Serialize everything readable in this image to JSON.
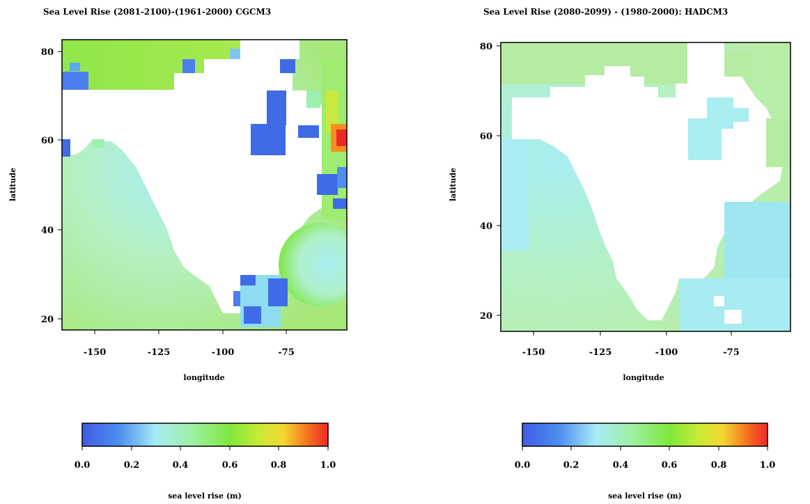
{
  "chart_data": [
    {
      "type": "heatmap",
      "title": "Sea Level Rise (2081-2100)-(1961-2000) CGCM3",
      "xlabel": "longitude",
      "ylabel": "latitude",
      "x_ticks": [
        -150,
        -125,
        -100,
        -75
      ],
      "y_ticks": [
        20,
        40,
        60,
        80
      ],
      "xlim": [
        -165,
        -55
      ],
      "ylim": [
        17,
        82
      ],
      "colorbar": {
        "label": "sea level rise (m)",
        "ticks": [
          0.0,
          0.2,
          0.4,
          0.6,
          0.8,
          1.0
        ],
        "tick_labels": [
          "0.0",
          "0.2",
          "0.4",
          "0.6",
          "0.8",
          "1.0"
        ],
        "range": [
          0.0,
          1.0
        ]
      },
      "grid": false,
      "approx_values": {
        "pacific_ocean": 0.35,
        "arctic_north": 0.6,
        "gulf_of_mexico": 0.15,
        "atlantic": 0.3,
        "hudson_bay": 0.05,
        "east_coast_peak": 1.0
      }
    },
    {
      "type": "heatmap",
      "title": "Sea Level Rise (2080-2099) - (1980-2000): HADCM3",
      "xlabel": "longitude",
      "ylabel": "latitude",
      "x_ticks": [
        -150,
        -125,
        -100,
        -75
      ],
      "y_ticks": [
        20,
        40,
        60,
        80
      ],
      "xlim": [
        -165,
        -55
      ],
      "ylim": [
        17,
        82
      ],
      "colorbar": {
        "label": "sea level rise (m)",
        "ticks": [
          0.0,
          0.2,
          0.4,
          0.6,
          0.8,
          1.0
        ],
        "tick_labels": [
          "0.0",
          "0.2",
          "0.4",
          "0.6",
          "0.8",
          "1.0"
        ],
        "range": [
          0.0,
          1.0
        ]
      },
      "grid": false,
      "approx_values": {
        "pacific_ocean": 0.35,
        "arctic_north": 0.4,
        "gulf_of_mexico": 0.3,
        "atlantic": 0.3,
        "hudson_bay": 0.3
      }
    }
  ]
}
